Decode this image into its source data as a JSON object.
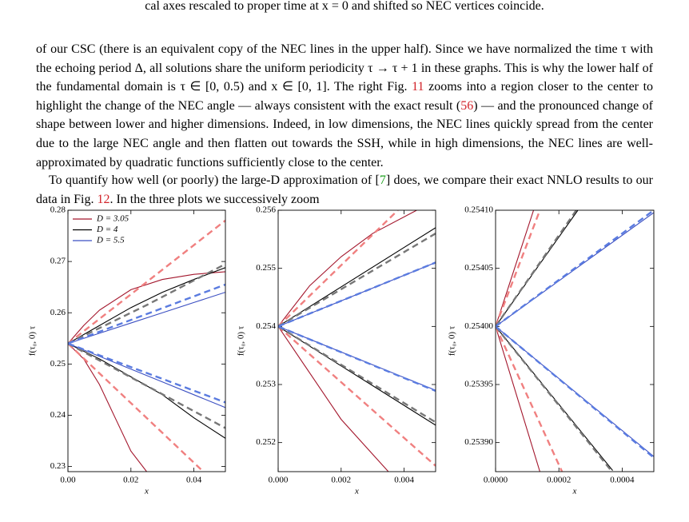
{
  "fragment": "cal axes rescaled to proper time at x = 0 and shifted so NEC vertices coincide.",
  "paragraphs": [
    [
      "of our CSC (there is an equivalent copy of the NEC lines in the upper half). Since we have normalized the time τ with the echoing period Δ, all solutions share the uniform periodicity τ → τ + 1 in these graphs. This is why the lower half of the fundamental domain is τ ∈ [0, 0.5) and x ∈ [0, 1]. The right Fig. ",
      "11",
      " zooms into a region closer to the center to highlight the change of the NEC angle — always consistent with the exact result (",
      "56",
      ") — and the pronounced change of shape between lower and higher dimensions. Indeed, in low dimensions, the NEC lines quickly spread from the center due to the large NEC angle and then flatten out towards the SSH, while in high dimensions, the NEC lines are well-approximated by quadratic functions sufficiently close to the center."
    ],
    [
      "To quantify how well (or poorly) the large-D approximation of [",
      "7",
      "] does, we compare their exact NNLO results to our data in Fig. ",
      "12",
      ". In the three plots we successively zoom"
    ]
  ],
  "chart_data": [
    {
      "type": "line",
      "xlabel": "x",
      "ylabel": "f(τ₀, 0) τ",
      "legend": "upper left",
      "xlim": [
        0,
        0.05
      ],
      "ylim": [
        0.229,
        0.28
      ],
      "xticks": [
        {
          "value": 0,
          "label": "0.00"
        },
        0.02,
        0.04
      ],
      "yticks": [
        0.23,
        0.24,
        0.25,
        0.26,
        0.27,
        0.28
      ],
      "series": [
        {
          "name": "D = 3.05",
          "color": "#a3162c",
          "x": [
            0,
            0.005,
            0.01,
            0.02,
            0.03,
            0.04,
            0.05
          ],
          "values": [
            0.254,
            0.2575,
            0.2605,
            0.2645,
            0.2665,
            0.2675,
            0.268
          ]
        },
        {
          "name": "D = 4",
          "color": "#000000",
          "x": [
            0,
            0.01,
            0.02,
            0.03,
            0.04,
            0.05
          ],
          "values": [
            0.254,
            0.2575,
            0.261,
            0.264,
            0.2665,
            0.2688
          ]
        },
        {
          "name": "D = 5.5",
          "color": "#3b4fc2",
          "x": [
            0,
            0.01,
            0.02,
            0.03,
            0.04,
            0.05
          ],
          "values": [
            0.254,
            0.256,
            0.258,
            0.26,
            0.262,
            0.264
          ]
        },
        {
          "color": "#a3162c",
          "x": [
            0,
            0.005,
            0.01,
            0.015,
            0.02,
            0.025
          ],
          "values": [
            0.254,
            0.251,
            0.246,
            0.2395,
            0.233,
            0.229
          ]
        },
        {
          "color": "#000000",
          "x": [
            0,
            0.01,
            0.02,
            0.03,
            0.04,
            0.05
          ],
          "values": [
            0.254,
            0.251,
            0.2475,
            0.244,
            0.2395,
            0.2355
          ]
        },
        {
          "color": "#3b4fc2",
          "x": [
            0,
            0.01,
            0.02,
            0.03,
            0.04,
            0.05
          ],
          "values": [
            0.254,
            0.2515,
            0.249,
            0.2465,
            0.244,
            0.2415
          ]
        },
        {
          "color": "#f08080",
          "linestyle": "dashed",
          "x": [
            0,
            0.05
          ],
          "values": [
            0.254,
            0.278
          ]
        },
        {
          "color": "#777777",
          "linestyle": "dashed",
          "x": [
            0,
            0.025,
            0.05
          ],
          "values": [
            0.254,
            0.2615,
            0.2695
          ]
        },
        {
          "color": "#5a7be0",
          "linestyle": "dashed",
          "x": [
            0,
            0.05
          ],
          "values": [
            0.254,
            0.2655
          ]
        },
        {
          "color": "#f08080",
          "linestyle": "dashed",
          "x": [
            0,
            0.043
          ],
          "values": [
            0.254,
            0.229
          ]
        },
        {
          "color": "#777777",
          "linestyle": "dashed",
          "x": [
            0,
            0.05
          ],
          "values": [
            0.254,
            0.2375
          ]
        },
        {
          "color": "#5a7be0",
          "linestyle": "dashed",
          "x": [
            0,
            0.05
          ],
          "values": [
            0.254,
            0.2425
          ]
        }
      ]
    },
    {
      "type": "line",
      "xlabel": "x",
      "ylabel": "f(τ₀, 0) τ",
      "xlim": [
        0,
        0.005
      ],
      "ylim": [
        0.2515,
        0.256
      ],
      "xticks": [
        {
          "value": 0,
          "label": "0.000"
        },
        0.002,
        0.004
      ],
      "yticks": [
        0.252,
        0.253,
        0.254,
        0.255,
        0.256
      ],
      "series": [
        {
          "color": "#a3162c",
          "x": [
            0,
            0.001,
            0.002,
            0.003,
            0.0044
          ],
          "values": [
            0.254,
            0.2547,
            0.2552,
            0.2556,
            0.256
          ]
        },
        {
          "color": "#000000",
          "x": [
            0,
            0.005
          ],
          "values": [
            0.254,
            0.2557
          ]
        },
        {
          "color": "#3b4fc2",
          "x": [
            0,
            0.005
          ],
          "values": [
            0.254,
            0.2551
          ]
        },
        {
          "color": "#a3162c",
          "x": [
            0,
            0.001,
            0.002,
            0.003,
            0.0035
          ],
          "values": [
            0.254,
            0.2532,
            0.2524,
            0.2518,
            0.2515
          ]
        },
        {
          "color": "#000000",
          "x": [
            0,
            0.005
          ],
          "values": [
            0.254,
            0.2523
          ]
        },
        {
          "color": "#3b4fc2",
          "x": [
            0,
            0.005
          ],
          "values": [
            0.254,
            0.2529
          ]
        },
        {
          "color": "#f08080",
          "linestyle": "dashed",
          "x": [
            0,
            0.0038
          ],
          "values": [
            0.254,
            0.256
          ]
        },
        {
          "color": "#777777",
          "linestyle": "dashed",
          "x": [
            0,
            0.005
          ],
          "values": [
            0.254,
            0.2556
          ]
        },
        {
          "color": "#5a7be0",
          "linestyle": "dashed",
          "x": [
            0,
            0.005
          ],
          "values": [
            0.254,
            0.2551
          ]
        },
        {
          "color": "#f08080",
          "linestyle": "dashed",
          "x": [
            0,
            0.005
          ],
          "values": [
            0.254,
            0.2516
          ]
        },
        {
          "color": "#777777",
          "linestyle": "dashed",
          "x": [
            0,
            0.005
          ],
          "values": [
            0.254,
            0.25235
          ]
        },
        {
          "color": "#5a7be0",
          "linestyle": "dashed",
          "x": [
            0,
            0.005
          ],
          "values": [
            0.254,
            0.25289
          ]
        }
      ]
    },
    {
      "type": "line",
      "xlabel": "x",
      "ylabel": "f(τ₀, 0) τ",
      "xlim": [
        0,
        0.0005
      ],
      "ylim": [
        0.253875,
        0.2541
      ],
      "xticks": [
        {
          "value": 0,
          "label": "0.0000"
        },
        0.0002,
        0.0004
      ],
      "yticks": [
        {
          "value": 0.2539,
          "label": "0.25390"
        },
        {
          "value": 0.25395,
          "label": "0.25395"
        },
        {
          "value": 0.254,
          "label": "0.25400"
        },
        {
          "value": 0.25405,
          "label": "0.25405"
        },
        {
          "value": 0.2541,
          "label": "0.25410"
        }
      ],
      "series": [
        {
          "color": "#a3162c",
          "x": [
            0,
            0.00012
          ],
          "values": [
            0.254,
            0.2541
          ]
        },
        {
          "color": "#000000",
          "x": [
            0,
            0.00026
          ],
          "values": [
            0.254,
            0.2541
          ]
        },
        {
          "color": "#3b4fc2",
          "x": [
            0,
            0.0005
          ],
          "values": [
            0.254,
            0.254098
          ]
        },
        {
          "color": "#a3162c",
          "x": [
            0,
            0.00014
          ],
          "values": [
            0.254,
            0.253875
          ]
        },
        {
          "color": "#000000",
          "x": [
            0,
            0.00037
          ],
          "values": [
            0.254,
            0.253876
          ]
        },
        {
          "color": "#3b4fc2",
          "x": [
            0,
            0.0005
          ],
          "values": [
            0.254,
            0.253888
          ]
        },
        {
          "color": "#f08080",
          "linestyle": "dashed",
          "x": [
            0,
            0.00014
          ],
          "values": [
            0.254,
            0.2541
          ]
        },
        {
          "color": "#777777",
          "linestyle": "dashed",
          "x": [
            0,
            0.000255
          ],
          "values": [
            0.254,
            0.2541
          ]
        },
        {
          "color": "#5a7be0",
          "linestyle": "dashed",
          "x": [
            0,
            0.0005
          ],
          "values": [
            0.254,
            0.2541
          ]
        },
        {
          "color": "#f08080",
          "linestyle": "dashed",
          "x": [
            0,
            0.00021
          ],
          "values": [
            0.254,
            0.253875
          ]
        },
        {
          "color": "#777777",
          "linestyle": "dashed",
          "x": [
            0,
            0.000365
          ],
          "values": [
            0.254,
            0.253876
          ]
        },
        {
          "color": "#5a7be0",
          "linestyle": "dashed",
          "x": [
            0,
            0.0005
          ],
          "values": [
            0.254,
            0.253887
          ]
        }
      ]
    }
  ]
}
